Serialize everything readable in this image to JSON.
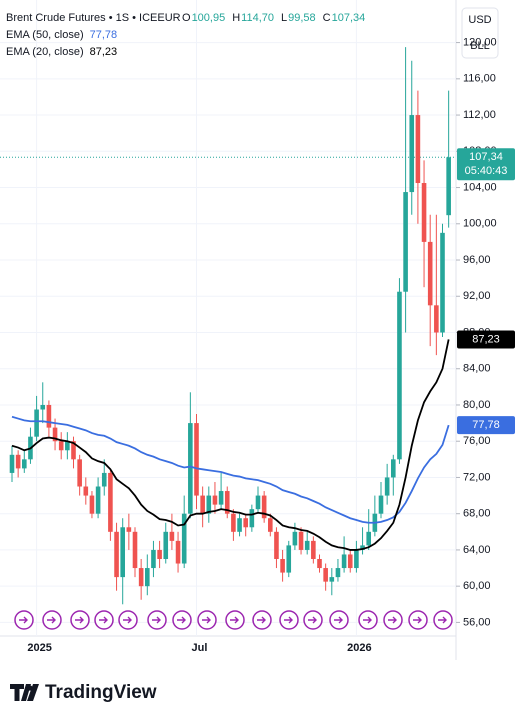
{
  "chart_data": {
    "type": "candlestick",
    "title": "Brent Crude Futures • 1S • ICEEUR",
    "ohlc_header": [
      {
        "key": "O",
        "value": "100,95"
      },
      {
        "key": "H",
        "value": "114,70"
      },
      {
        "key": "L",
        "value": "99,58"
      },
      {
        "key": "C",
        "value": "107,34"
      }
    ],
    "currency": "USD",
    "unit": "BLL",
    "last_price_label": "107,34",
    "countdown": "05:40:43",
    "up_color": "#26a69a",
    "down_color": "#ef5350",
    "grid": true,
    "categories": [
      null,
      null,
      null,
      null,
      "2025",
      null,
      null,
      null,
      null,
      null,
      null,
      null,
      null,
      null,
      null,
      null,
      null,
      null,
      null,
      null,
      null,
      null,
      null,
      null,
      null,
      null,
      null,
      null,
      null,
      null,
      "Jul",
      null,
      null,
      null,
      null,
      null,
      null,
      null,
      null,
      null,
      null,
      null,
      null,
      null,
      null,
      null,
      null,
      null,
      null,
      null,
      null,
      null,
      null,
      null,
      null,
      null,
      "2026",
      null,
      null,
      null,
      null,
      null,
      null,
      null,
      null,
      null,
      null,
      null,
      null,
      null,
      null,
      null
    ],
    "open": [
      72.5,
      74.5,
      73,
      74,
      76.5,
      79.5,
      80,
      77.5,
      76,
      75,
      76,
      74,
      71,
      70,
      68,
      71,
      72.5,
      66,
      61,
      66.5,
      66,
      62,
      60,
      62,
      64,
      63,
      66,
      65,
      62.5,
      68,
      78,
      70,
      68,
      70,
      69,
      70.5,
      68,
      66,
      67.5,
      66.5,
      68.5,
      70,
      67.5,
      66,
      63,
      61.5,
      64.5,
      66,
      64,
      65,
      63,
      62,
      60.5,
      61,
      62,
      63.5,
      62,
      64,
      64.5,
      66,
      68,
      70,
      72,
      74,
      92.5,
      103.5,
      112,
      104.5,
      98,
      91,
      88,
      100.95
    ],
    "high": [
      75.5,
      75,
      75,
      77.5,
      81,
      82.5,
      80.5,
      78.5,
      77,
      77,
      76.5,
      74.5,
      72,
      70.5,
      72,
      74,
      73,
      67,
      67.5,
      68,
      66.5,
      63,
      63.5,
      65,
      65,
      67,
      68,
      66,
      70,
      81.4,
      79,
      71,
      71,
      71.5,
      72.5,
      71,
      68.5,
      68,
      68,
      69,
      71,
      70.5,
      68,
      66.5,
      64,
      65,
      67,
      66.5,
      66,
      65.5,
      63.5,
      62.5,
      62,
      63,
      65.5,
      64,
      65,
      66.5,
      68.5,
      70,
      71.5,
      73.5,
      74.5,
      94,
      119.5,
      118,
      114.7,
      107,
      101,
      101,
      100,
      114.7
    ],
    "low": [
      71.5,
      72,
      72.5,
      73.5,
      76,
      78,
      76.5,
      75,
      74,
      74,
      73,
      70,
      69,
      67.5,
      67.5,
      70,
      65,
      59.5,
      58,
      64,
      61,
      58.5,
      59,
      61,
      62,
      62.5,
      64,
      61.5,
      62,
      67.5,
      68.5,
      66.5,
      67,
      68,
      68.5,
      67.5,
      65,
      65.5,
      65.5,
      66,
      68,
      67,
      65.5,
      62,
      60.5,
      61,
      64,
      63.5,
      63.5,
      62.5,
      61.5,
      59.5,
      59,
      60.5,
      61.5,
      61.5,
      61.5,
      63.5,
      64,
      65.5,
      67.5,
      69,
      70,
      73.5,
      88,
      101,
      100,
      93,
      86.5,
      85.5,
      87.5,
      99.58
    ],
    "close": [
      74.5,
      73,
      74,
      76.5,
      79.5,
      80,
      77.5,
      76,
      75,
      76,
      74,
      71,
      70,
      68,
      71,
      72.5,
      66,
      61,
      66.5,
      66,
      62,
      60,
      62,
      64,
      63,
      66,
      65,
      62.5,
      68,
      78,
      70,
      68,
      70,
      69,
      70.5,
      68,
      66,
      67.5,
      66.5,
      68.5,
      70,
      67.5,
      66,
      63,
      61.5,
      64.5,
      66,
      64,
      65,
      63,
      62,
      60.5,
      61,
      62,
      63.5,
      62,
      64,
      64.5,
      66,
      68,
      70,
      72,
      74,
      92.5,
      103.5,
      112,
      104.5,
      98,
      91,
      88,
      99,
      107.34
    ],
    "series": [
      {
        "name": "EMA (50, close)",
        "color": "#3a6ee0",
        "last_value_label": "77,78",
        "values": [
          78.7,
          78.5,
          78.3,
          78.2,
          78.2,
          78.2,
          78.1,
          78,
          77.9,
          77.8,
          77.6,
          77.4,
          77.2,
          76.9,
          76.7,
          76.6,
          76.3,
          75.9,
          75.7,
          75.5,
          75.2,
          74.8,
          74.5,
          74.3,
          74,
          73.8,
          73.6,
          73.3,
          73.1,
          73.2,
          73,
          72.9,
          72.8,
          72.7,
          72.6,
          72.4,
          72.2,
          72.1,
          71.9,
          71.8,
          71.7,
          71.5,
          71.3,
          71,
          70.6,
          70.4,
          70.2,
          69.9,
          69.7,
          69.4,
          69.1,
          68.7,
          68.4,
          68.1,
          67.8,
          67.5,
          67.3,
          67.1,
          67,
          67,
          67.1,
          67.3,
          67.6,
          68.2,
          69.2,
          70.5,
          71.9,
          73.1,
          74,
          74.6,
          75.6,
          77.78
        ]
      },
      {
        "name": "EMA (20, close)",
        "color": "#000000",
        "last_value_label": "87,23",
        "values": [
          75.5,
          75.3,
          75,
          75.2,
          75.8,
          76.3,
          76.4,
          76.3,
          76.1,
          76,
          75.8,
          75.3,
          74.8,
          74.1,
          73.8,
          73.6,
          72.9,
          71.8,
          71.3,
          70.8,
          70,
          69,
          68.3,
          67.9,
          67.4,
          67.3,
          67.1,
          66.7,
          66.8,
          67.8,
          68,
          68,
          68.2,
          68.3,
          68.5,
          68.4,
          68.2,
          68.1,
          67.9,
          67.9,
          68.1,
          68,
          67.8,
          67.3,
          66.7,
          66.5,
          66.4,
          66.2,
          66.1,
          65.8,
          65.4,
          64.9,
          64.5,
          64.3,
          64.2,
          64,
          64,
          64.1,
          64.3,
          64.7,
          65.3,
          66.1,
          67,
          69,
          72,
          75.5,
          78.3,
          80.3,
          81.5,
          82.5,
          84,
          87.23
        ]
      }
    ],
    "ylim": [
      54.5,
      124.7
    ],
    "yticks": [
      {
        "value": 56,
        "label": "56,00"
      },
      {
        "value": 60,
        "label": "60,00"
      },
      {
        "value": 64,
        "label": "64,00"
      },
      {
        "value": 68,
        "label": "68,00"
      },
      {
        "value": 72,
        "label": "72,00"
      },
      {
        "value": 76,
        "label": "76,00"
      },
      {
        "value": 80,
        "label": "80,00"
      },
      {
        "value": 84,
        "label": "84,00"
      },
      {
        "value": 88,
        "label": "88,00"
      },
      {
        "value": 92,
        "label": "92,00"
      },
      {
        "value": 96,
        "label": "96,00"
      },
      {
        "value": 100,
        "label": "100,00"
      },
      {
        "value": 104,
        "label": "104,00"
      },
      {
        "value": 108,
        "label": "108,00"
      },
      {
        "value": 112,
        "label": "112,00"
      },
      {
        "value": 116,
        "label": "116,00"
      },
      {
        "value": 120,
        "label": "120,00"
      }
    ],
    "logo": "TradingView"
  }
}
